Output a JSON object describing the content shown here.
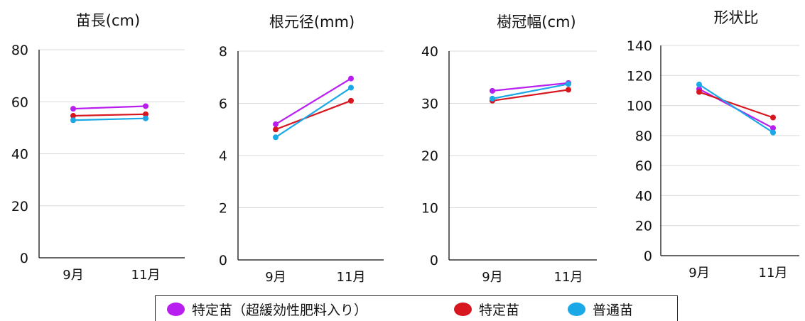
{
  "colors": {
    "purple": "#b81ef0",
    "red": "#d8161f",
    "blue": "#1aa8e6"
  },
  "legend": [
    {
      "label": "特定苗（超緩効性肥料入り）",
      "color": "#b81ef0"
    },
    {
      "label": "特定苗",
      "color": "#d8161f"
    },
    {
      "label": "普通苗",
      "color": "#1aa8e6"
    }
  ],
  "chart_data": [
    {
      "type": "line",
      "title": "苗長(cm)",
      "categories": [
        "9月",
        "11月"
      ],
      "ylim": [
        0,
        80
      ],
      "yticks": [
        0,
        20,
        40,
        60,
        80
      ],
      "grid": true,
      "series": [
        {
          "name": "特定苗（超緩効性肥料入り）",
          "color": "#b81ef0",
          "values": [
            57.3,
            58.3
          ]
        },
        {
          "name": "特定苗",
          "color": "#d8161f",
          "values": [
            54.6,
            55.2
          ]
        },
        {
          "name": "普通苗",
          "color": "#1aa8e6",
          "values": [
            52.9,
            53.6
          ]
        }
      ]
    },
    {
      "type": "line",
      "title": "根元径(mm)",
      "categories": [
        "9月",
        "11月"
      ],
      "ylim": [
        0,
        8
      ],
      "yticks": [
        0,
        2,
        4,
        6,
        8
      ],
      "grid": true,
      "series": [
        {
          "name": "特定苗（超緩効性肥料入り）",
          "color": "#b81ef0",
          "values": [
            5.2,
            6.95
          ]
        },
        {
          "name": "特定苗",
          "color": "#d8161f",
          "values": [
            5.0,
            6.1
          ]
        },
        {
          "name": "普通苗",
          "color": "#1aa8e6",
          "values": [
            4.7,
            6.6
          ]
        }
      ]
    },
    {
      "type": "line",
      "title": "樹冠幅(cm)",
      "categories": [
        "9月",
        "11月"
      ],
      "ylim": [
        0,
        40
      ],
      "yticks": [
        0,
        10,
        20,
        30,
        40
      ],
      "grid": true,
      "series": [
        {
          "name": "特定苗（超緩効性肥料入り）",
          "color": "#b81ef0",
          "values": [
            32.4,
            33.9
          ]
        },
        {
          "name": "特定苗",
          "color": "#d8161f",
          "values": [
            30.5,
            32.6
          ]
        },
        {
          "name": "普通苗",
          "color": "#1aa8e6",
          "values": [
            30.9,
            33.7
          ]
        }
      ]
    },
    {
      "type": "line",
      "title": "形状比",
      "categories": [
        "9月",
        "11月"
      ],
      "ylim": [
        0,
        140
      ],
      "yticks": [
        0,
        20,
        40,
        60,
        80,
        100,
        120,
        140
      ],
      "grid": true,
      "series": [
        {
          "name": "特定苗（超緩効性肥料入り）",
          "color": "#b81ef0",
          "values": [
            111,
            85
          ]
        },
        {
          "name": "特定苗",
          "color": "#d8161f",
          "values": [
            109,
            92
          ]
        },
        {
          "name": "普通苗",
          "color": "#1aa8e6",
          "values": [
            114,
            82
          ]
        }
      ]
    }
  ]
}
